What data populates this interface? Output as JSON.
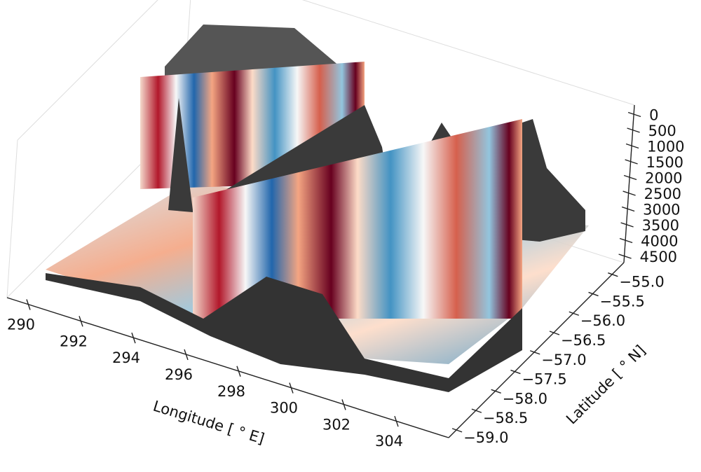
{
  "chart_data": {
    "type": "surface3d",
    "xlabel": "Longitude [ ° E]",
    "ylabel": "Latitude [ ° N]",
    "xlim": [
      289.2,
      306
    ],
    "xticks": [
      290,
      292,
      294,
      296,
      298,
      300,
      302,
      304
    ],
    "ylim": [
      -59.2,
      -54.7
    ],
    "yticks": [
      {
        "value": -59.0,
        "label": "−59.0"
      },
      {
        "value": -58.5,
        "label": "−58.5"
      },
      {
        "value": -58.0,
        "label": "−58.0"
      },
      {
        "value": -57.5,
        "label": "−57.5"
      },
      {
        "value": -57.0,
        "label": "−57.0"
      },
      {
        "value": -56.5,
        "label": "−56.5"
      },
      {
        "value": -56.0,
        "label": "−56.0"
      },
      {
        "value": -55.5,
        "label": "−55.5"
      },
      {
        "value": -55.0,
        "label": "−55.0"
      }
    ],
    "zlim": [
      4700,
      -300
    ],
    "zticks": [
      0,
      500,
      1000,
      1500,
      2000,
      2500,
      3000,
      3500,
      4000,
      4500
    ]
  }
}
